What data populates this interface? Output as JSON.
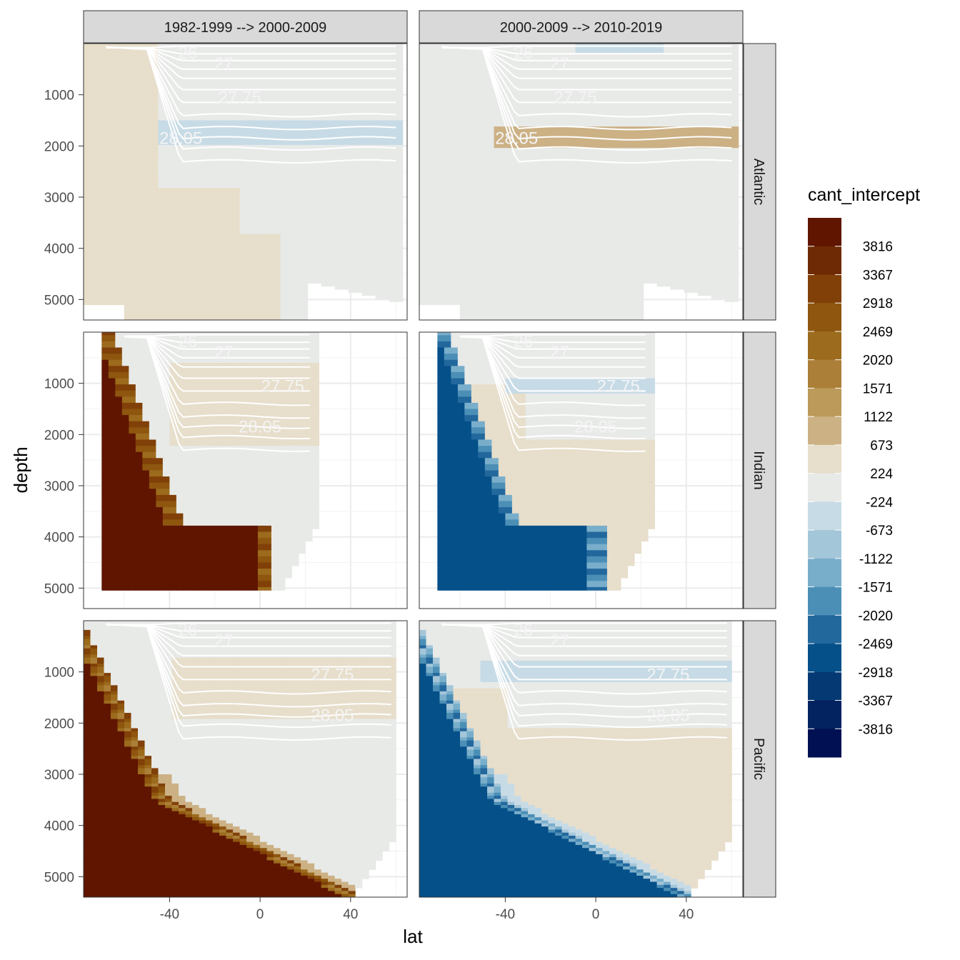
{
  "chart_data": {
    "type": "heatmap",
    "variable": "cant_intercept",
    "xlabel": "lat",
    "ylabel": "depth",
    "xlim": [
      -78,
      65
    ],
    "ylim": [
      5400,
      0
    ],
    "x_ticks": [
      -40,
      0,
      40
    ],
    "x_tick_labels": [
      "-40",
      "0",
      "40"
    ],
    "y_ticks": [
      1000,
      2000,
      3000,
      4000,
      5000
    ],
    "y_tick_labels": [
      "1000",
      "2000",
      "3000",
      "4000",
      "5000"
    ],
    "columns": [
      "1982-1999 --> 2000-2009",
      "2000-2009 --> 2010-2019"
    ],
    "rows": [
      "Atlantic",
      "Indian",
      "Pacific"
    ],
    "legend": {
      "title": "cant_intercept",
      "labels": [
        "3816",
        "3367",
        "2918",
        "2469",
        "2020",
        "1571",
        "1122",
        "673",
        "224",
        "-224",
        "-673",
        "-1122",
        "-1571",
        "-2020",
        "-2469",
        "-2918",
        "-3367",
        "-3816"
      ],
      "colors": [
        "#5f1500",
        "#6e2a04",
        "#804008",
        "#8e560f",
        "#9c6b1d",
        "#ab7f37",
        "#bb9a5a",
        "#ccb185",
        "#e7decb",
        "#e8eae8",
        "#c7dbe6",
        "#a4c6d9",
        "#79aecb",
        "#4c8fb6",
        "#23689d",
        "#055089",
        "#053973",
        "#032260",
        "#011052"
      ]
    },
    "isopycnal_labels": [
      "26",
      "27",
      "27.75",
      "28.05"
    ],
    "panels": [
      {
        "row": "Atlantic",
        "column": "1982-1999 --> 2000-2009",
        "dominant_range": "224 to 673 (south and deep)",
        "isopycnal_label_lat": [
          -32,
          -16,
          -9,
          -35
        ]
      },
      {
        "row": "Atlantic",
        "column": "2000-2009 --> 2010-2019",
        "dominant_range": "-224 to 224",
        "isopycnal_label_lat": [
          -32,
          -16,
          -9,
          -35
        ]
      },
      {
        "row": "Indian",
        "column": "1982-1999 --> 2000-2009",
        "dominant_range": "up to 3816 (deep south)",
        "isopycnal_label_lat": [
          -32,
          -16,
          10,
          0
        ]
      },
      {
        "row": "Indian",
        "column": "2000-2009 --> 2010-2019",
        "dominant_range": "down to -2918 (deep south)",
        "isopycnal_label_lat": [
          -32,
          -16,
          10,
          0
        ]
      },
      {
        "row": "Pacific",
        "column": "1982-1999 --> 2000-2009",
        "dominant_range": "up to 3816 (deep)",
        "isopycnal_label_lat": [
          -32,
          -16,
          32,
          32
        ]
      },
      {
        "row": "Pacific",
        "column": "2000-2009 --> 2010-2019",
        "dominant_range": "down to -2918 (deep)",
        "isopycnal_label_lat": [
          -32,
          -16,
          32,
          32
        ]
      }
    ]
  }
}
